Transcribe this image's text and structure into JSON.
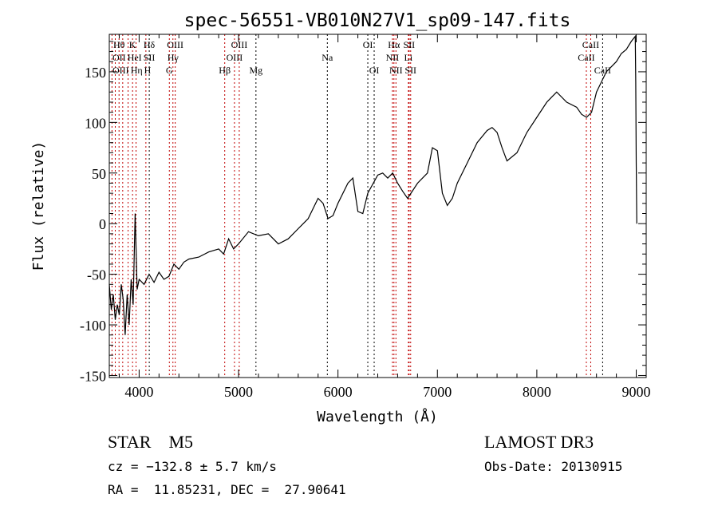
{
  "chart_data": {
    "type": "line",
    "title": "spec-56551-VB010N27V1_sp09-147.fits",
    "xlabel": "Wavelength (Å)",
    "ylabel": "Flux (relative)",
    "xlim": [
      3700,
      9100
    ],
    "ylim": [
      -152,
      187
    ],
    "xticks": [
      4000,
      5000,
      6000,
      7000,
      8000,
      9000
    ],
    "yticks": [
      -150,
      -100,
      -50,
      0,
      50,
      100,
      150
    ],
    "x": [
      3700,
      3720,
      3740,
      3760,
      3780,
      3800,
      3820,
      3840,
      3860,
      3880,
      3900,
      3920,
      3940,
      3960,
      3980,
      4000,
      4050,
      4100,
      4150,
      4200,
      4250,
      4300,
      4350,
      4400,
      4450,
      4500,
      4600,
      4700,
      4800,
      4850,
      4900,
      4950,
      5000,
      5100,
      5200,
      5300,
      5400,
      5500,
      5600,
      5700,
      5800,
      5850,
      5900,
      5950,
      6000,
      6100,
      6150,
      6200,
      6250,
      6300,
      6400,
      6450,
      6500,
      6550,
      6600,
      6650,
      6700,
      6800,
      6900,
      6950,
      7000,
      7050,
      7100,
      7150,
      7200,
      7300,
      7400,
      7500,
      7550,
      7600,
      7650,
      7700,
      7800,
      7900,
      8000,
      8100,
      8150,
      8200,
      8300,
      8400,
      8450,
      8500,
      8550,
      8600,
      8650,
      8700,
      8800,
      8850,
      8900,
      8950,
      8990,
      8995,
      9000,
      9005
    ],
    "y": [
      -60,
      -85,
      -70,
      -95,
      -80,
      -90,
      -60,
      -75,
      -110,
      -70,
      -100,
      -55,
      -80,
      10,
      -65,
      -55,
      -60,
      -50,
      -58,
      -48,
      -55,
      -52,
      -40,
      -45,
      -38,
      -35,
      -33,
      -28,
      -25,
      -30,
      -15,
      -25,
      -20,
      -8,
      -12,
      -10,
      -20,
      -15,
      -5,
      5,
      25,
      20,
      5,
      8,
      20,
      40,
      45,
      12,
      10,
      30,
      48,
      50,
      45,
      50,
      40,
      32,
      25,
      40,
      50,
      75,
      72,
      30,
      18,
      25,
      40,
      60,
      80,
      92,
      95,
      90,
      75,
      62,
      70,
      90,
      105,
      120,
      125,
      130,
      120,
      115,
      108,
      105,
      110,
      130,
      140,
      150,
      160,
      168,
      172,
      180,
      185,
      140,
      60,
      0
    ],
    "lines": [
      {
        "label": "Hθ",
        "wave": 3798,
        "color": "#c00000"
      },
      {
        "label": "K",
        "wave": 3934,
        "color": "#c00000"
      },
      {
        "label": "Hδ",
        "wave": 4102,
        "color": "#000000"
      },
      {
        "label": "OIII",
        "wave": 4363,
        "color": "#c00000"
      },
      {
        "label": "OIII",
        "wave": 5007,
        "color": "#c00000"
      },
      {
        "label": "OI",
        "wave": 6300,
        "color": "#000000"
      },
      {
        "label": "Hα",
        "wave": 6563,
        "color": "#c00000"
      },
      {
        "label": "SII",
        "wave": 6716,
        "color": "#c00000"
      },
      {
        "label": "CaII",
        "wave": 8542,
        "color": "#c00000"
      },
      {
        "label": "OII",
        "wave": 3727,
        "color": "#c00000"
      },
      {
        "label": "HeI",
        "wave": 3889,
        "color": "#c00000"
      },
      {
        "label": "SII",
        "wave": 4068,
        "color": "#c00000"
      },
      {
        "label": "Hγ",
        "wave": 4340,
        "color": "#c00000"
      },
      {
        "label": "OIII",
        "wave": 4959,
        "color": "#c00000"
      },
      {
        "label": "Na",
        "wave": 5893,
        "color": "#000000"
      },
      {
        "label": "NII",
        "wave": 6548,
        "color": "#c00000"
      },
      {
        "label": "Li",
        "wave": 6708,
        "color": "#c00000"
      },
      {
        "label": "CaII",
        "wave": 8498,
        "color": "#c00000"
      },
      {
        "label": "OIII",
        "wave": 3760,
        "color": "#c00000"
      },
      {
        "label": "Hη",
        "wave": 3835,
        "color": "#c00000"
      },
      {
        "label": "H",
        "wave": 3969,
        "color": "#c00000"
      },
      {
        "label": "G",
        "wave": 4304,
        "color": "#c00000"
      },
      {
        "label": "Hβ",
        "wave": 4861,
        "color": "#c00000"
      },
      {
        "label": "Mg",
        "wave": 5175,
        "color": "#000000"
      },
      {
        "label": "OI",
        "wave": 6364,
        "color": "#000000"
      },
      {
        "label": "NII",
        "wave": 6583,
        "color": "#c00000"
      },
      {
        "label": "SII",
        "wave": 6731,
        "color": "#c00000"
      },
      {
        "label": "CaII",
        "wave": 8662,
        "color": "#000000"
      }
    ]
  },
  "info": {
    "object": "STAR    M5",
    "survey": "LAMOST DR3",
    "cz": "cz = −132.8 ± 5.7 km/s",
    "obs_date": "Obs-Date: 20130915",
    "coords": "RA =  11.85231, DEC =  27.90641"
  }
}
